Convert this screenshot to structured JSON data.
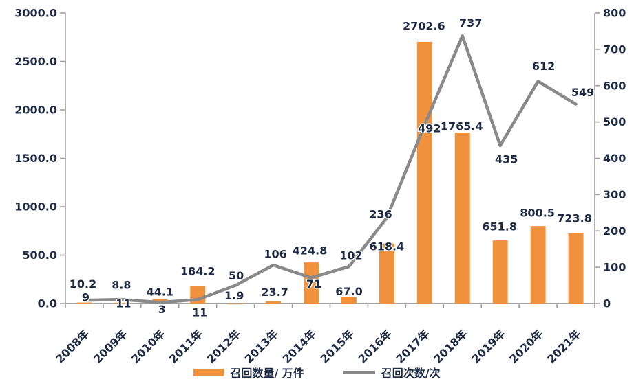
{
  "chart_data": {
    "type": "combo-bar-line",
    "title": "",
    "categories": [
      "2008年",
      "2009年",
      "2010年",
      "2011年",
      "2012年",
      "2013年",
      "2014年",
      "2015年",
      "2016年",
      "2017年",
      "2018年",
      "2019年",
      "2020年",
      "2021年"
    ],
    "series": [
      {
        "name": "召回数量/ 万件",
        "type": "bar",
        "axis": "left",
        "color": "#F0923D",
        "decimals": 1,
        "values": [
          10.2,
          8.8,
          44.1,
          184.2,
          1.9,
          23.7,
          424.8,
          67.0,
          618.4,
          2702.6,
          1765.4,
          651.8,
          800.5,
          723.8
        ],
        "label_offsets": [
          [
            -2,
            -15
          ],
          [
            -1,
            -14
          ],
          [
            0,
            1
          ],
          [
            0,
            -9
          ],
          [
            -2,
            1
          ],
          [
            2,
            -1
          ],
          [
            -2,
            -5
          ],
          [
            0,
            4
          ],
          [
            0,
            16
          ],
          [
            -1,
            -11
          ],
          [
            -1,
            3
          ],
          [
            -1,
            -8
          ],
          [
            -1,
            -7
          ],
          [
            -2,
            -10
          ]
        ]
      },
      {
        "name": "召回次数/次",
        "type": "line",
        "axis": "right",
        "color": "#8A8A8A",
        "decimals": 0,
        "values": [
          9,
          11,
          3,
          11,
          50,
          106,
          71,
          102,
          236,
          492,
          737,
          435,
          612,
          549
        ],
        "label_offsets": [
          [
            2,
            8
          ],
          [
            2,
            18
          ],
          [
            3,
            22
          ],
          [
            3,
            31
          ],
          [
            1,
            -2
          ],
          [
            3,
            -4
          ],
          [
            4,
            21
          ],
          [
            3,
            -4
          ],
          [
            -9,
            7
          ],
          [
            7,
            17
          ],
          [
            12,
            -7
          ],
          [
            9,
            32
          ],
          [
            8,
            -10
          ],
          [
            10,
            -5
          ]
        ]
      }
    ],
    "left_axis": {
      "min": 0,
      "max": 3000,
      "ticks": [
        "3000.0",
        "2500.0",
        "2000.0",
        "1500.0",
        "1000.0",
        "500.0",
        "0.0"
      ]
    },
    "right_axis": {
      "min": 0,
      "max": 800,
      "ticks": [
        "800",
        "700",
        "600",
        "500",
        "400",
        "300",
        "200",
        "100",
        "0"
      ]
    },
    "layout": {
      "grid": "off",
      "legend_position": "bottom",
      "x_label_rotation": -45
    },
    "styles": {
      "text_color": "#1E2B45",
      "axis_color": "#9E9E9E",
      "background": "#ffffff"
    }
  }
}
